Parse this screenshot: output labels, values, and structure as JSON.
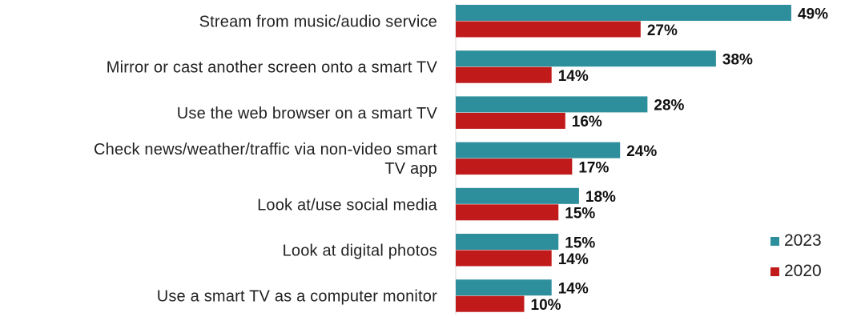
{
  "chart_data": {
    "type": "bar",
    "orientation": "horizontal",
    "title": "",
    "xlabel": "",
    "ylabel": "",
    "grid": false,
    "legend_position": "bottom-right",
    "value_suffix": "%",
    "categories": [
      [
        "Stream from music/audio service"
      ],
      [
        "Mirror or cast another screen onto a smart TV"
      ],
      [
        "Use the web browser on a smart TV"
      ],
      [
        "Check news/weather/traffic via non-video smart",
        "TV app"
      ],
      [
        "Look at/use social media"
      ],
      [
        "Look at digital photos"
      ],
      [
        "Use a smart TV as a computer monitor"
      ]
    ],
    "series": [
      {
        "name": "2023",
        "color": "#2e8f9c",
        "values": [
          49,
          38,
          28,
          24,
          18,
          15,
          14
        ]
      },
      {
        "name": "2020",
        "color": "#c01a1a",
        "values": [
          27,
          14,
          16,
          17,
          15,
          14,
          10
        ]
      }
    ]
  }
}
